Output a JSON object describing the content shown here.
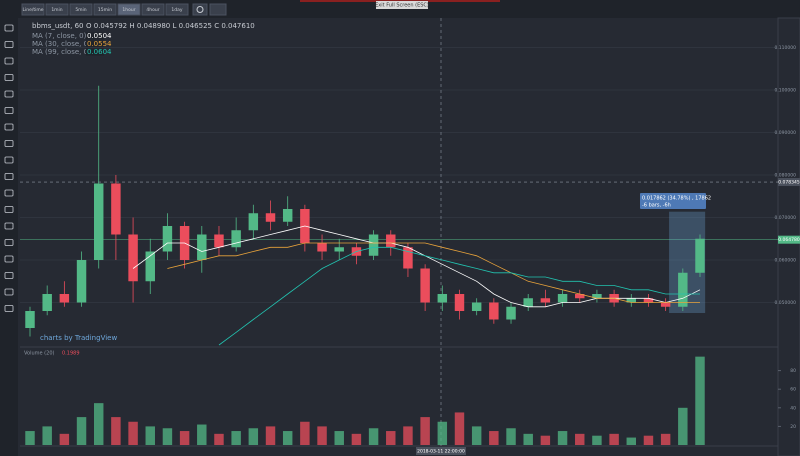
{
  "toolbar": {
    "buttons": [
      "Line/time",
      "1min",
      "5min",
      "15min",
      "1hour",
      "4hour",
      "1day"
    ],
    "exit_hint": "Exit Full Screen (ESC)"
  },
  "header": {
    "symbol": "bbms_usdt, 60",
    "ohlc": "O 0.045792  H 0.048980  L 0.046525  C 0.047610",
    "ma": [
      {
        "label": "MA (7, close, 0)",
        "value": 0.0504,
        "color": "#ffffff"
      },
      {
        "label": "MA (30, close, 0)",
        "value": 0.0554,
        "color": "#e8a33b"
      },
      {
        "label": "MA (99, close, 0)",
        "value": 0.0604,
        "color": "#22c3b0"
      }
    ]
  },
  "watermark": "charts by TradingView",
  "crosshair_date": "2018-03-11 22:00:00",
  "measure": {
    "line1": "0.017862 (34.78%) , 17862",
    "line2": "-6 bars, -6h"
  },
  "chart_data": [
    {
      "type": "candlestick",
      "up_color": "#53b987",
      "down_color": "#eb4d5c",
      "ylim": [
        0.04,
        0.116
      ],
      "yticks": [
        {
          "value": 0.05,
          "label": "0.050000"
        },
        {
          "value": 0.06,
          "label": "0.060000"
        },
        {
          "value": 0.07,
          "label": "0.070000"
        },
        {
          "value": 0.08,
          "label": "0.080000"
        },
        {
          "value": 0.09,
          "label": "0.090000"
        },
        {
          "value": 0.1,
          "label": "0.100000"
        },
        {
          "value": 0.11,
          "label": "0.110000"
        }
      ],
      "crosshair_price": 0.078345,
      "last_price": {
        "value": 0.06478,
        "label": "0.064780"
      },
      "open": [
        0.044,
        0.048,
        0.052,
        0.05,
        0.06,
        0.078,
        0.066,
        0.055,
        0.062,
        0.068,
        0.06,
        0.066,
        0.063,
        0.067,
        0.071,
        0.069,
        0.072,
        0.064,
        0.062,
        0.063,
        0.061,
        0.066,
        0.063,
        0.058,
        0.05,
        0.052,
        0.048,
        0.05,
        0.046,
        0.049,
        0.051,
        0.05,
        0.052,
        0.051,
        0.052,
        0.05,
        0.051,
        0.05,
        0.049,
        0.057
      ],
      "close": [
        0.048,
        0.052,
        0.05,
        0.06,
        0.078,
        0.066,
        0.055,
        0.062,
        0.068,
        0.06,
        0.066,
        0.063,
        0.067,
        0.071,
        0.069,
        0.072,
        0.064,
        0.062,
        0.063,
        0.061,
        0.066,
        0.063,
        0.058,
        0.05,
        0.052,
        0.048,
        0.05,
        0.046,
        0.049,
        0.051,
        0.05,
        0.052,
        0.051,
        0.052,
        0.05,
        0.051,
        0.05,
        0.049,
        0.057,
        0.065
      ],
      "high": [
        0.049,
        0.054,
        0.055,
        0.062,
        0.101,
        0.08,
        0.07,
        0.065,
        0.071,
        0.069,
        0.068,
        0.068,
        0.07,
        0.073,
        0.074,
        0.075,
        0.073,
        0.066,
        0.065,
        0.064,
        0.067,
        0.067,
        0.064,
        0.059,
        0.054,
        0.053,
        0.051,
        0.051,
        0.05,
        0.052,
        0.053,
        0.053,
        0.053,
        0.053,
        0.053,
        0.052,
        0.052,
        0.051,
        0.058,
        0.066
      ],
      "low": [
        0.042,
        0.047,
        0.049,
        0.049,
        0.058,
        0.06,
        0.05,
        0.052,
        0.06,
        0.058,
        0.057,
        0.061,
        0.062,
        0.065,
        0.067,
        0.068,
        0.062,
        0.06,
        0.06,
        0.059,
        0.06,
        0.061,
        0.056,
        0.048,
        0.048,
        0.046,
        0.047,
        0.045,
        0.045,
        0.048,
        0.049,
        0.049,
        0.05,
        0.05,
        0.049,
        0.049,
        0.049,
        0.048,
        0.048,
        0.056
      ],
      "series": [
        {
          "name": "MA 7",
          "color": "#ffffff",
          "values": [
            null,
            null,
            null,
            null,
            null,
            null,
            0.058,
            0.061,
            0.064,
            0.064,
            0.062,
            0.063,
            0.064,
            0.065,
            0.066,
            0.067,
            0.068,
            0.067,
            0.066,
            0.065,
            0.064,
            0.064,
            0.063,
            0.061,
            0.059,
            0.057,
            0.055,
            0.052,
            0.05,
            0.049,
            0.049,
            0.05,
            0.05,
            0.051,
            0.051,
            0.051,
            0.051,
            0.05,
            0.051,
            0.053
          ]
        },
        {
          "name": "MA 30",
          "color": "#e8a33b",
          "values": [
            null,
            null,
            null,
            null,
            null,
            null,
            null,
            null,
            0.058,
            0.059,
            0.06,
            0.061,
            0.061,
            0.062,
            0.063,
            0.063,
            0.064,
            0.064,
            0.064,
            0.064,
            0.064,
            0.064,
            0.064,
            0.064,
            0.063,
            0.062,
            0.061,
            0.059,
            0.057,
            0.055,
            0.054,
            0.053,
            0.052,
            0.051,
            0.051,
            0.05,
            0.05,
            0.05,
            0.05,
            0.05
          ]
        },
        {
          "name": "MA 99",
          "color": "#22c3b0",
          "values": [
            null,
            null,
            null,
            null,
            null,
            null,
            null,
            null,
            null,
            null,
            null,
            0.04,
            0.043,
            0.046,
            0.049,
            0.052,
            0.055,
            0.058,
            0.06,
            0.062,
            0.063,
            0.063,
            0.062,
            0.061,
            0.06,
            0.059,
            0.058,
            0.057,
            0.057,
            0.056,
            0.056,
            0.055,
            0.055,
            0.054,
            0.054,
            0.053,
            0.053,
            0.052,
            0.052,
            0.052
          ]
        }
      ]
    },
    {
      "type": "bar",
      "title": "Volume (20)",
      "last_value": 0.1989,
      "ylim": [
        0,
        100
      ],
      "yticks": [
        20,
        40,
        60,
        80
      ],
      "values": [
        15,
        20,
        12,
        30,
        45,
        30,
        25,
        20,
        18,
        15,
        22,
        12,
        15,
        18,
        20,
        15,
        25,
        20,
        15,
        12,
        18,
        15,
        20,
        30,
        25,
        35,
        20,
        15,
        18,
        12,
        10,
        15,
        12,
        10,
        12,
        8,
        10,
        12,
        40,
        95
      ]
    }
  ]
}
